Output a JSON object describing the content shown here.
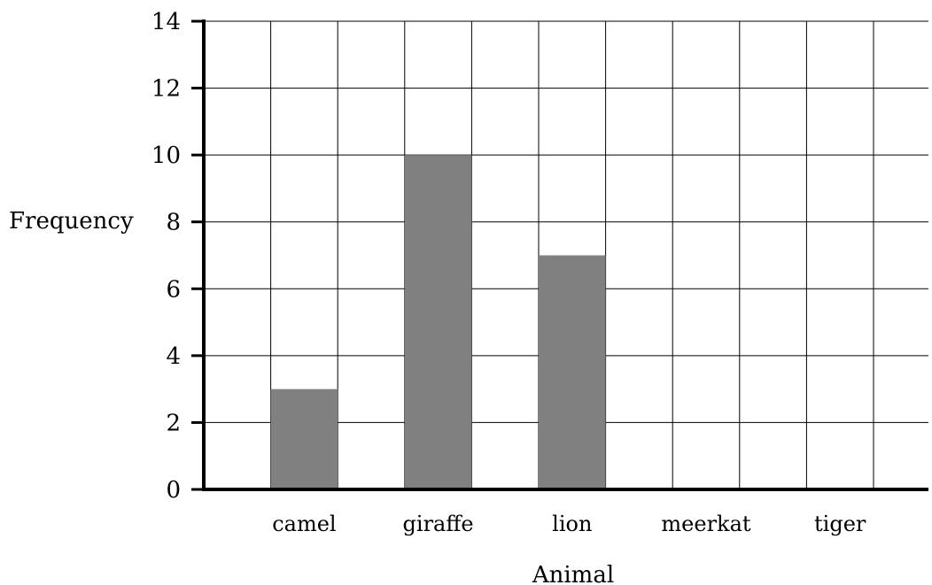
{
  "chart_data": {
    "type": "bar",
    "categories": [
      "camel",
      "giraffe",
      "lion",
      "meerkat",
      "tiger"
    ],
    "values": [
      3,
      10,
      7,
      0,
      0
    ],
    "xlabel": "Animal",
    "ylabel": "Frequency",
    "ylim": [
      0,
      14
    ],
    "yticks": [
      0,
      2,
      4,
      6,
      8,
      10,
      12,
      14
    ],
    "grid": true,
    "bar_color": "#808080"
  }
}
